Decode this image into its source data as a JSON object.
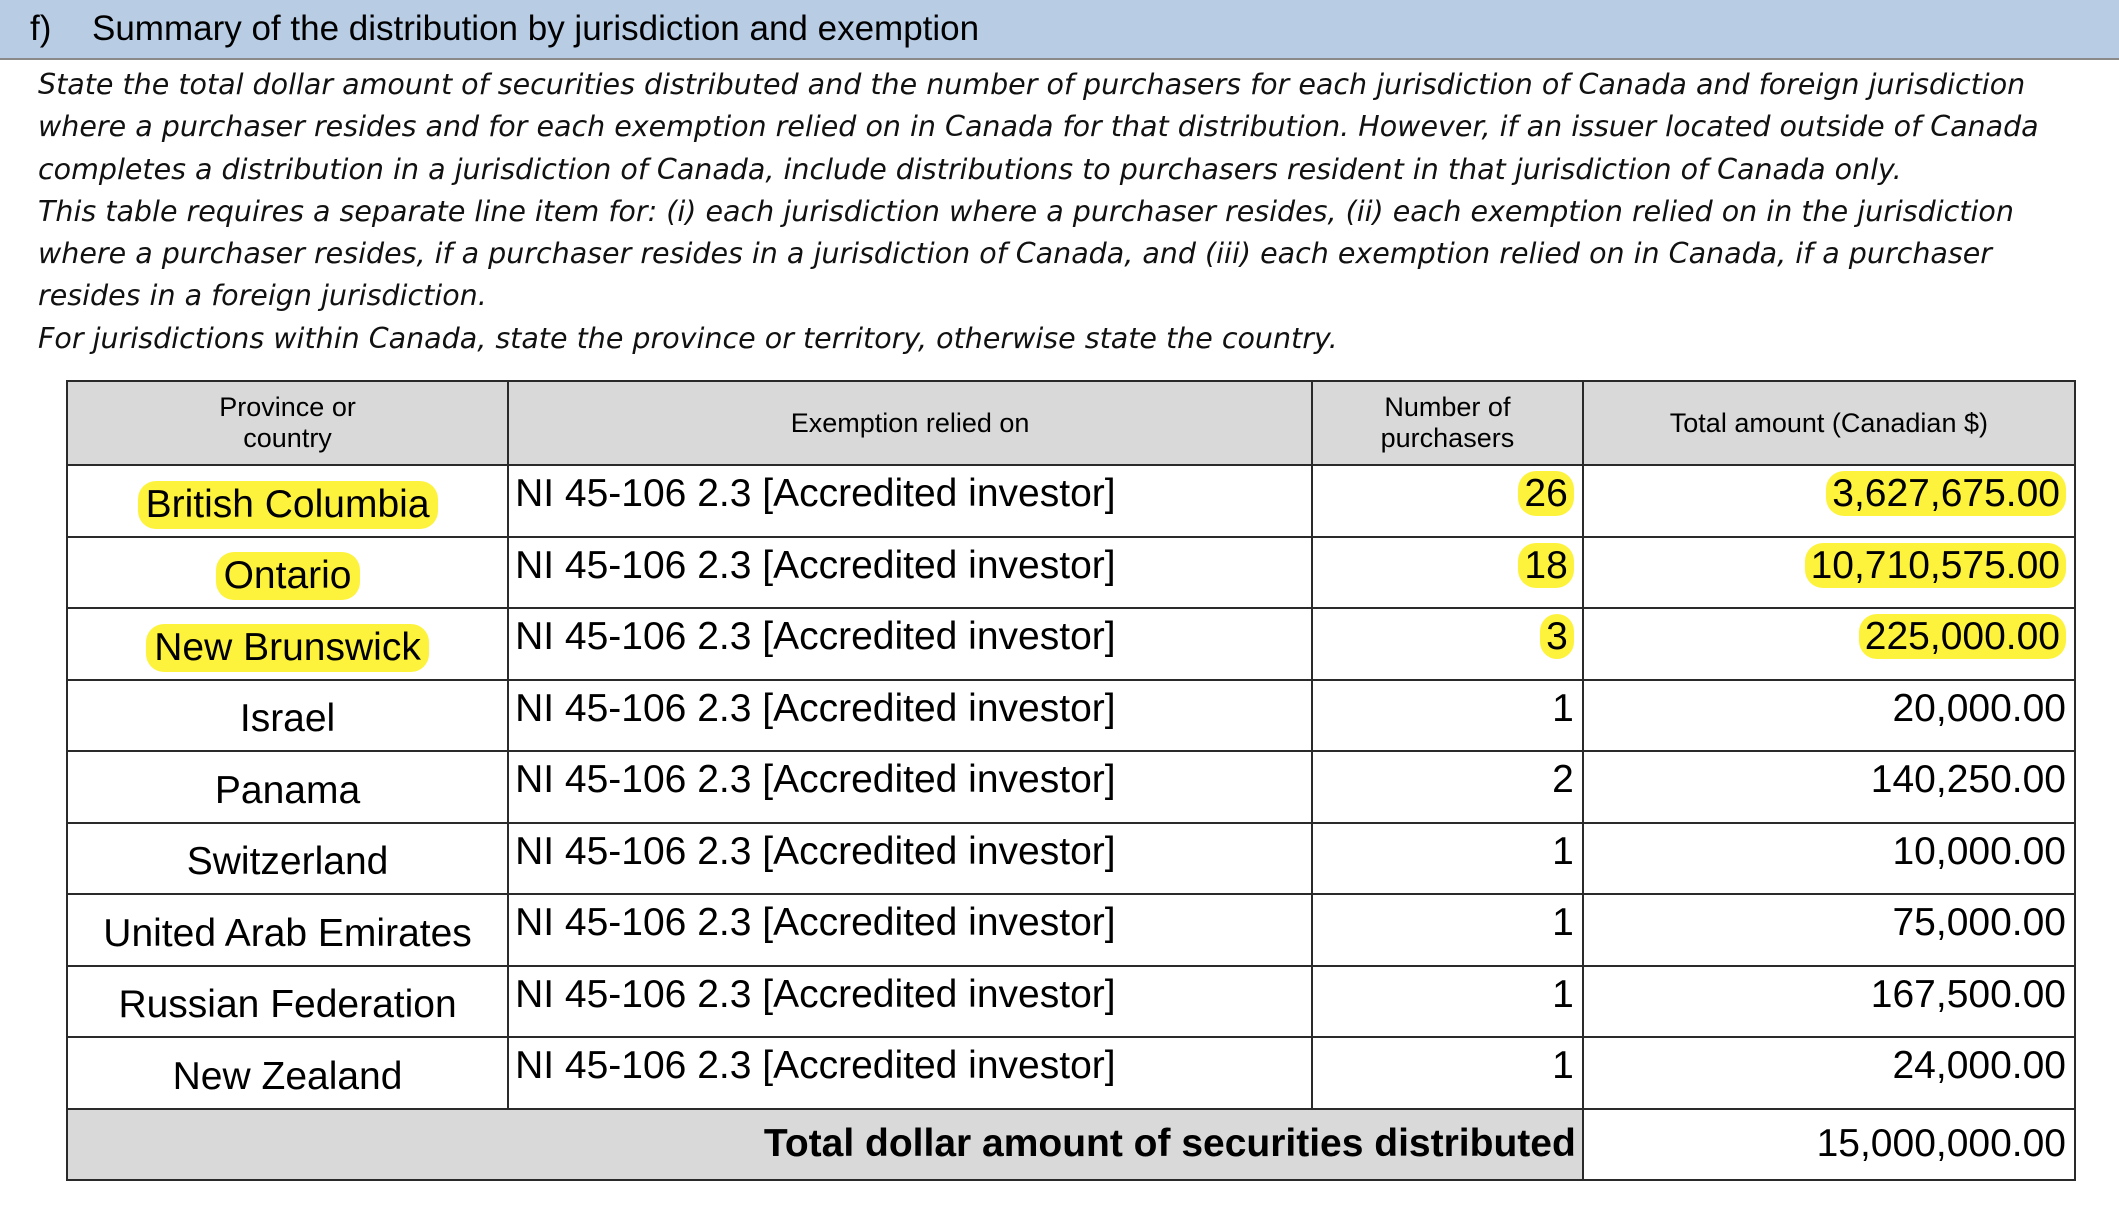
{
  "section": {
    "letter": "f)",
    "title": "Summary of the distribution by jurisdiction and exemption"
  },
  "instructions": [
    "State the total dollar amount of securities distributed and the number of purchasers for each jurisdiction of Canada and foreign jurisdiction where a purchaser resides and for each exemption relied on in Canada for that distribution. However, if an issuer located outside of Canada completes a distribution in a jurisdiction of Canada, include distributions to purchasers resident in that jurisdiction of Canada only.",
    "This table requires a separate line item for: (i) each jurisdiction where a purchaser resides, (ii) each exemption relied on in the jurisdiction where a purchaser resides, if a purchaser resides in a jurisdiction of Canada, and (iii) each exemption relied on in Canada, if a purchaser resides in a foreign jurisdiction.",
    "For jurisdictions within Canada, state the province or territory, otherwise state the country."
  ],
  "table": {
    "headers": {
      "province": "Province or\ncountry",
      "exemption": "Exemption relied on",
      "purchasers": "Number of\npurchasers",
      "amount": "Total amount (Canadian $)"
    },
    "rows": [
      {
        "province": "British Columbia",
        "exemption": "NI 45-106 2.3 [Accredited investor]",
        "purchasers": "26",
        "amount": "3,627,675.00",
        "highlighted": true
      },
      {
        "province": "Ontario",
        "exemption": "NI 45-106 2.3 [Accredited investor]",
        "purchasers": "18",
        "amount": "10,710,575.00",
        "highlighted": true
      },
      {
        "province": "New Brunswick",
        "exemption": "NI 45-106 2.3 [Accredited investor]",
        "purchasers": "3",
        "amount": "225,000.00",
        "highlighted": true
      },
      {
        "province": "Israel",
        "exemption": "NI 45-106 2.3 [Accredited investor]",
        "purchasers": "1",
        "amount": "20,000.00",
        "highlighted": false
      },
      {
        "province": "Panama",
        "exemption": "NI 45-106 2.3 [Accredited investor]",
        "purchasers": "2",
        "amount": "140,250.00",
        "highlighted": false
      },
      {
        "province": "Switzerland",
        "exemption": "NI 45-106 2.3 [Accredited investor]",
        "purchasers": "1",
        "amount": "10,000.00",
        "highlighted": false
      },
      {
        "province": "United Arab Emirates",
        "exemption": "NI 45-106 2.3 [Accredited investor]",
        "purchasers": "1",
        "amount": "75,000.00",
        "highlighted": false
      },
      {
        "province": "Russian Federation",
        "exemption": "NI 45-106 2.3 [Accredited investor]",
        "purchasers": "1",
        "amount": "167,500.00",
        "highlighted": false
      },
      {
        "province": "New Zealand",
        "exemption": "NI 45-106 2.3 [Accredited investor]",
        "purchasers": "1",
        "amount": "24,000.00",
        "highlighted": false
      }
    ],
    "total_label": "Total dollar amount of securities distributed",
    "total_value": "15,000,000.00"
  },
  "colors": {
    "header_band": "#b8cce4",
    "table_header": "#d9d9d9",
    "highlight": "#fdf33c"
  }
}
